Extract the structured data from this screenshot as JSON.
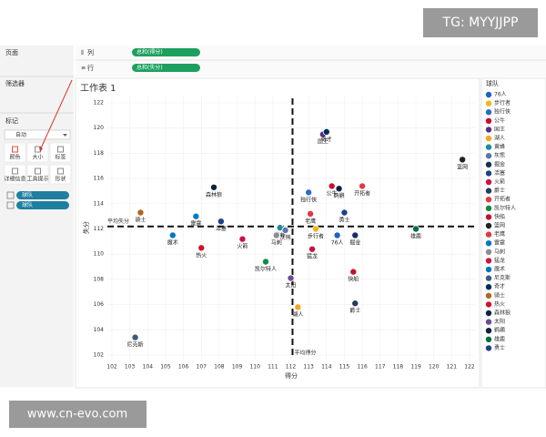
{
  "watermarks": {
    "top": "TG: MYYJJPP",
    "bottom": "www.cn-evo.com"
  },
  "panels": {
    "pages": "页面",
    "filters": "筛选器",
    "marks": "标记",
    "mark_type": "自动",
    "buttons": [
      "颜色",
      "大小",
      "标签",
      "详细信息",
      "工具提示",
      "形状"
    ],
    "pills": [
      "球队",
      "球队"
    ]
  },
  "shelves": {
    "columns": {
      "label": "列",
      "pill": "总和(得分)"
    },
    "rows": {
      "label": "行",
      "pill": "总和(失分)"
    }
  },
  "chart_data": {
    "type": "scatter",
    "title": "工作表 1",
    "x_label": "得分",
    "y_label": "失分",
    "xlim": [
      102,
      122
    ],
    "ylim": [
      102,
      122
    ],
    "xticks": [
      102,
      103,
      104,
      105,
      106,
      107,
      108,
      109,
      110,
      111,
      112,
      113,
      114,
      115,
      116,
      117,
      118,
      119,
      120,
      121,
      122
    ],
    "yticks": [
      102,
      104,
      106,
      108,
      110,
      112,
      114,
      116,
      118,
      120,
      122
    ],
    "grid": true,
    "legend_title": "球队",
    "legend": "right",
    "reference_lines": [
      {
        "axis": "x",
        "value": 112.1,
        "label": "平均得分"
      },
      {
        "axis": "y",
        "value": 112.2,
        "label": "平均失分"
      }
    ],
    "points": [
      {
        "name": "76人",
        "x": 114.6,
        "y": 111.5,
        "color": "#1d62c4"
      },
      {
        "name": "步行者",
        "x": 113.4,
        "y": 112.0,
        "color": "#f2b51c"
      },
      {
        "name": "独行侠",
        "x": 113.0,
        "y": 114.9,
        "color": "#2b6cc4"
      },
      {
        "name": "公牛",
        "x": 114.3,
        "y": 115.4,
        "color": "#c8102e"
      },
      {
        "name": "国王",
        "x": 113.8,
        "y": 119.5,
        "color": "#5a2d81"
      },
      {
        "name": "湖人",
        "x": 112.4,
        "y": 105.8,
        "color": "#f5a623"
      },
      {
        "name": "黄蜂",
        "x": 111.4,
        "y": 112.1,
        "color": "#1d8ca0"
      },
      {
        "name": "灰熊",
        "x": 111.7,
        "y": 111.9,
        "color": "#5d76a9"
      },
      {
        "name": "掘金",
        "x": 115.6,
        "y": 111.5,
        "color": "#16305a"
      },
      {
        "name": "活塞",
        "x": 108.1,
        "y": 112.6,
        "color": "#1d428a"
      },
      {
        "name": "火箭",
        "x": 109.3,
        "y": 111.2,
        "color": "#ce1141"
      },
      {
        "name": "爵士",
        "x": 115.6,
        "y": 106.1,
        "color": "#263c58"
      },
      {
        "name": "开拓者",
        "x": 116.0,
        "y": 115.4,
        "color": "#e03a3e"
      },
      {
        "name": "凯尔特人",
        "x": 110.6,
        "y": 109.4,
        "color": "#108a45"
      },
      {
        "name": "快船",
        "x": 115.5,
        "y": 108.6,
        "color": "#c8102e"
      },
      {
        "name": "篮网",
        "x": 121.6,
        "y": 117.5,
        "color": "#222222"
      },
      {
        "name": "老鹰",
        "x": 113.1,
        "y": 113.2,
        "color": "#e03a3e"
      },
      {
        "name": "雷霆",
        "x": 106.7,
        "y": 113.0,
        "color": "#007ac1"
      },
      {
        "name": "马刺",
        "x": 111.2,
        "y": 111.5,
        "color": "#8a8d8f"
      },
      {
        "name": "猛龙",
        "x": 113.2,
        "y": 110.4,
        "color": "#ce1141"
      },
      {
        "name": "魔术",
        "x": 105.4,
        "y": 111.5,
        "color": "#0077c0"
      },
      {
        "name": "尼克斯",
        "x": 103.3,
        "y": 103.4,
        "color": "#3d5a80"
      },
      {
        "name": "奇才",
        "x": 114.0,
        "y": 119.7,
        "color": "#002b5c"
      },
      {
        "name": "骑士",
        "x": 103.6,
        "y": 113.3,
        "color": "#b5651d"
      },
      {
        "name": "热火",
        "x": 107.0,
        "y": 110.5,
        "color": "#d0102c"
      },
      {
        "name": "森林狼",
        "x": 107.7,
        "y": 115.3,
        "color": "#0c2340"
      },
      {
        "name": "太阳",
        "x": 112.0,
        "y": 108.1,
        "color": "#6a4c93"
      },
      {
        "name": "鹈鹕",
        "x": 114.7,
        "y": 115.2,
        "color": "#0c2340"
      },
      {
        "name": "雄鹿",
        "x": 119.0,
        "y": 112.0,
        "color": "#00713b"
      },
      {
        "name": "勇士",
        "x": 115.0,
        "y": 113.3,
        "color": "#1d428a"
      }
    ]
  }
}
